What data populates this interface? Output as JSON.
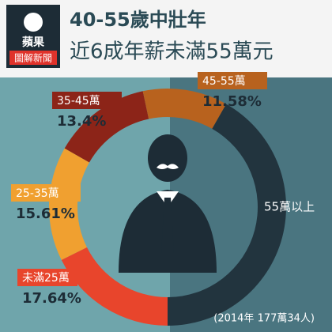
{
  "chart_data": {
    "type": "donut",
    "logo": [
      "蘋果",
      "圖解新聞"
    ],
    "title": "40-55歲中壯年",
    "subtitle": "近6成年薪未滿55萬元",
    "categories": [
      "未滿25萬",
      "25-35萬",
      "35-45萬",
      "45-55萬",
      "55萬以上"
    ],
    "values": [
      17.64,
      15.61,
      13.4,
      11.58,
      41.77
    ],
    "value_labels": [
      "17.64%",
      "15.61%",
      "13.4%",
      "11.58%",
      null
    ],
    "colors": [
      "#e8452c",
      "#f0a030",
      "#8c2418",
      "#b8621e",
      "#22343e"
    ],
    "note": "(2014年 177萬34人)"
  }
}
